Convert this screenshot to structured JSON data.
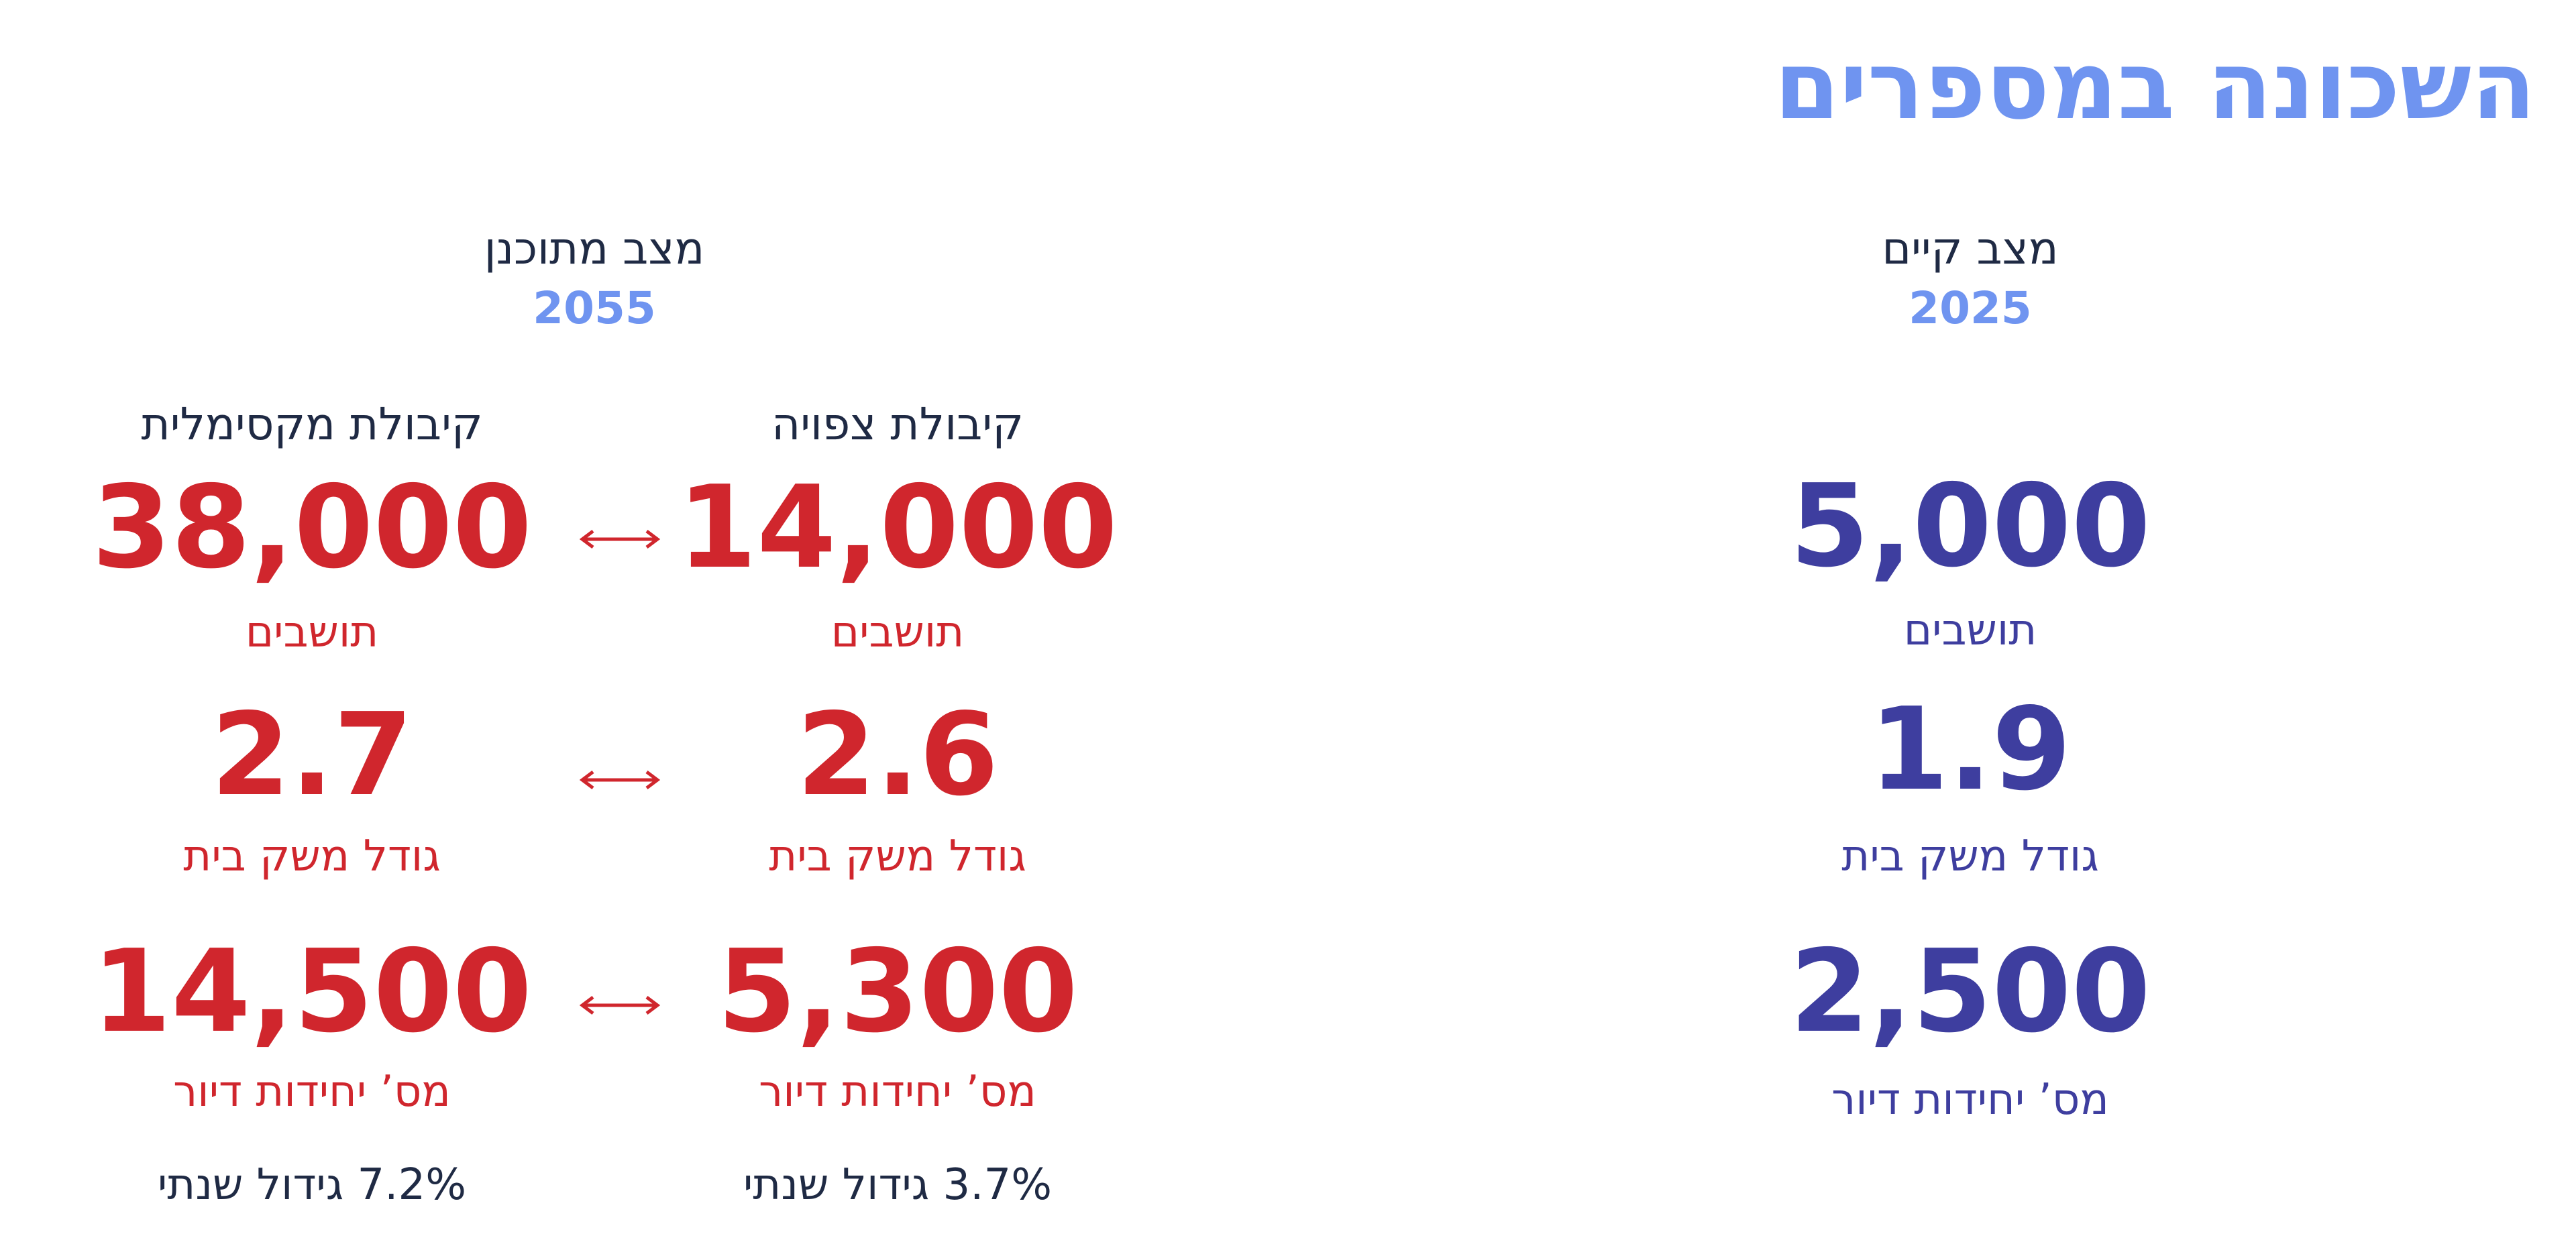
{
  "title": "השכונה במספרים",
  "current": {
    "heading": "מצב קיים",
    "year": "2025",
    "stats": [
      {
        "value": "5,000",
        "label": "תושבים"
      },
      {
        "value": "1.9",
        "label": "גודל משק בית"
      },
      {
        "value": "2,500",
        "label": "מס’ יחידות דיור"
      }
    ]
  },
  "planned": {
    "heading": "מצב מתוכנן",
    "year": "2055",
    "scenarios": [
      {
        "name": "קיבולת צפויה",
        "stats": [
          {
            "value": "14,000",
            "label": "תושבים"
          },
          {
            "value": "2.6",
            "label": "גודל משק בית"
          },
          {
            "value": "5,300",
            "label": "מס’ יחידות דיור"
          }
        ],
        "growth": "3.7% גידול שנתי"
      },
      {
        "name": "קיבולת מקסימלית",
        "stats": [
          {
            "value": "38,000",
            "label": "תושבים"
          },
          {
            "value": "2.7",
            "label": "גודל משק בית"
          },
          {
            "value": "14,500",
            "label": "מס’ יחידות דיור"
          }
        ],
        "growth": "7.2% גידול שנתי"
      }
    ]
  }
}
